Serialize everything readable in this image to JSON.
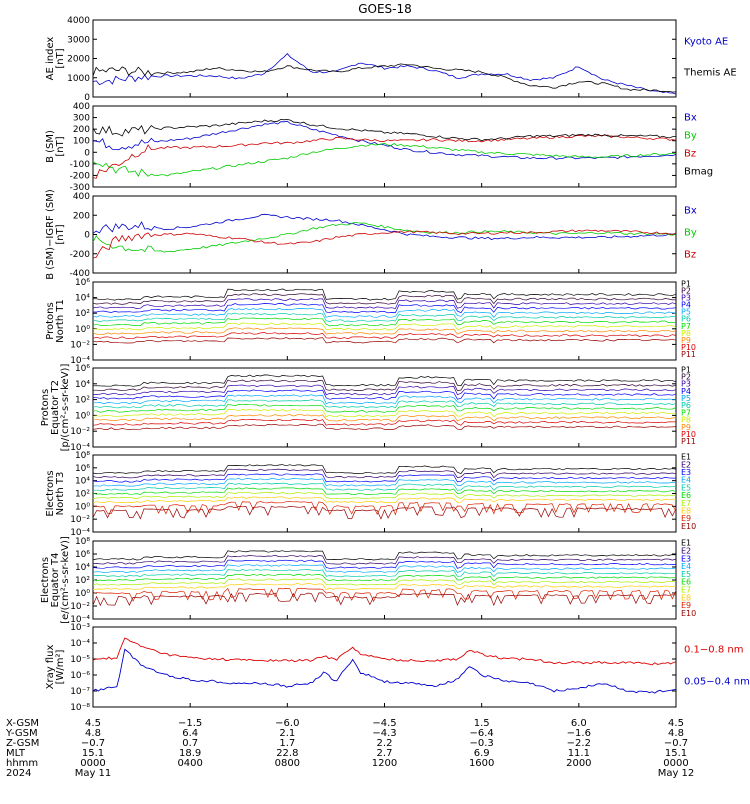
{
  "title": "GOES-18",
  "chart_data": [
    {
      "type": "line",
      "ylabel": [
        "AE index",
        "[nT]"
      ],
      "ylim": [
        0,
        4000
      ],
      "yticks": [
        "0",
        "1000",
        "2000",
        "3000",
        "4000"
      ],
      "legend": [
        {
          "name": "Kyoto AE",
          "color": "#0000cc"
        },
        {
          "name": "Themis AE",
          "color": "#000000"
        }
      ],
      "series": [
        {
          "name": "Kyoto AE",
          "color": "#0000cc",
          "x": [
            0,
            1,
            2,
            3,
            4,
            5,
            6,
            7,
            8,
            9,
            10,
            11,
            12,
            13,
            14,
            15,
            16,
            17,
            18,
            19,
            20,
            21,
            22,
            23,
            24
          ],
          "y": [
            800,
            900,
            1050,
            1100,
            1100,
            1100,
            950,
            1200,
            2200,
            1300,
            1300,
            1800,
            1500,
            1600,
            1400,
            1000,
            1200,
            1200,
            900,
            1000,
            1600,
            900,
            600,
            300,
            150
          ]
        },
        {
          "name": "Themis AE",
          "color": "#000000",
          "x": [
            0,
            1,
            2,
            3,
            4,
            5,
            6,
            7,
            8,
            9,
            10,
            11,
            12,
            13,
            14,
            15,
            16,
            17,
            18,
            19,
            20,
            21,
            22,
            23,
            24
          ],
          "y": [
            1300,
            1400,
            1300,
            1250,
            1300,
            1500,
            1400,
            1300,
            1600,
            1400,
            1300,
            1500,
            1600,
            1700,
            1500,
            1400,
            1300,
            1000,
            600,
            500,
            800,
            700,
            400,
            350,
            300
          ]
        }
      ]
    },
    {
      "type": "line",
      "ylabel": [
        "B (SM)",
        "[nT]"
      ],
      "ylim": [
        -300,
        400
      ],
      "yticks": [
        "-300",
        "-200",
        "-100",
        "0",
        "100",
        "200",
        "300",
        "400"
      ],
      "legend": [
        {
          "name": "Bx",
          "color": "#0000cc"
        },
        {
          "name": "By",
          "color": "#00cc00"
        },
        {
          "name": "Bz",
          "color": "#cc0000"
        },
        {
          "name": "Bmag",
          "color": "#000000"
        }
      ],
      "series": [
        {
          "name": "Bx",
          "color": "#0000cc",
          "x": [
            0,
            1,
            2,
            3,
            4,
            5,
            6,
            7,
            8,
            9,
            10,
            11,
            12,
            13,
            14,
            15,
            16,
            17,
            18,
            19,
            20,
            21,
            22,
            23,
            24
          ],
          "y": [
            100,
            50,
            80,
            100,
            120,
            160,
            200,
            240,
            260,
            200,
            150,
            100,
            60,
            20,
            0,
            -20,
            -30,
            -40,
            -50,
            -50,
            -50,
            -50,
            -40,
            -30,
            -20
          ]
        },
        {
          "name": "By",
          "color": "#00cc00",
          "x": [
            0,
            1,
            2,
            3,
            4,
            5,
            6,
            7,
            8,
            9,
            10,
            11,
            12,
            13,
            14,
            15,
            16,
            17,
            18,
            19,
            20,
            21,
            22,
            23,
            24
          ],
          "y": [
            -50,
            -150,
            -180,
            -200,
            -170,
            -140,
            -110,
            -80,
            -50,
            0,
            30,
            60,
            70,
            60,
            40,
            20,
            0,
            -10,
            -20,
            -30,
            -40,
            -40,
            -30,
            -20,
            -10
          ]
        },
        {
          "name": "Bz",
          "color": "#cc0000",
          "x": [
            0,
            1,
            2,
            3,
            4,
            5,
            6,
            7,
            8,
            9,
            10,
            11,
            12,
            13,
            14,
            15,
            16,
            17,
            18,
            19,
            20,
            21,
            22,
            23,
            24
          ],
          "y": [
            -200,
            -100,
            20,
            40,
            40,
            50,
            60,
            80,
            80,
            100,
            120,
            110,
            100,
            100,
            110,
            100,
            100,
            110,
            120,
            130,
            140,
            140,
            130,
            120,
            110
          ]
        },
        {
          "name": "Bmag",
          "color": "#000000",
          "x": [
            0,
            1,
            2,
            3,
            4,
            5,
            6,
            7,
            8,
            9,
            10,
            11,
            12,
            13,
            14,
            15,
            16,
            17,
            18,
            19,
            20,
            21,
            22,
            23,
            24
          ],
          "y": [
            200,
            180,
            190,
            210,
            220,
            230,
            250,
            270,
            280,
            240,
            210,
            190,
            170,
            160,
            140,
            120,
            110,
            120,
            140,
            140,
            150,
            150,
            140,
            140,
            130
          ]
        }
      ]
    },
    {
      "type": "line",
      "ylabel": [
        "B (SM)−IGRF (SM)",
        "[nT]"
      ],
      "ylim": [
        -400,
        400
      ],
      "yticks": [
        "-400",
        "-200",
        "0",
        "200",
        "400"
      ],
      "legend": [
        {
          "name": "Bx",
          "color": "#0000cc"
        },
        {
          "name": "By",
          "color": "#00cc00"
        },
        {
          "name": "Bz",
          "color": "#cc0000"
        }
      ],
      "series": [
        {
          "name": "Bx",
          "color": "#0000cc",
          "x": [
            0,
            1,
            2,
            3,
            4,
            5,
            6,
            7,
            8,
            9,
            10,
            11,
            12,
            13,
            14,
            15,
            16,
            17,
            18,
            19,
            20,
            21,
            22,
            23,
            24
          ],
          "y": [
            50,
            80,
            90,
            60,
            80,
            120,
            160,
            200,
            180,
            160,
            150,
            100,
            50,
            0,
            -20,
            -30,
            -40,
            -40,
            -30,
            -30,
            -30,
            -30,
            -20,
            -10,
            0
          ]
        },
        {
          "name": "By",
          "color": "#00cc00",
          "x": [
            0,
            1,
            2,
            3,
            4,
            5,
            6,
            7,
            8,
            9,
            10,
            11,
            12,
            13,
            14,
            15,
            16,
            17,
            18,
            19,
            20,
            21,
            22,
            23,
            24
          ],
          "y": [
            -50,
            -120,
            -160,
            -180,
            -150,
            -120,
            -80,
            -40,
            0,
            60,
            100,
            120,
            80,
            40,
            20,
            20,
            30,
            30,
            20,
            10,
            10,
            20,
            10,
            10,
            0
          ]
        },
        {
          "name": "Bz",
          "color": "#cc0000",
          "x": [
            0,
            1,
            2,
            3,
            4,
            5,
            6,
            7,
            8,
            9,
            10,
            11,
            12,
            13,
            14,
            15,
            16,
            17,
            18,
            19,
            20,
            21,
            22,
            23,
            24
          ],
          "y": [
            -250,
            -50,
            0,
            0,
            10,
            -20,
            -40,
            -80,
            -100,
            -80,
            -30,
            0,
            20,
            30,
            20,
            10,
            10,
            20,
            20,
            30,
            40,
            40,
            30,
            20,
            10
          ]
        }
      ]
    },
    {
      "type": "line",
      "ylabel": [
        "Protons",
        "North T1"
      ],
      "yscale": "log",
      "ylim": [
        0.0001,
        1000000
      ],
      "yticks": [
        "10⁻⁴",
        "10⁻²",
        "10⁰",
        "10²",
        "10⁴",
        "10⁶"
      ],
      "legend": [
        {
          "name": "P1",
          "color": "#000000"
        },
        {
          "name": "P2",
          "color": "#330033"
        },
        {
          "name": "P3",
          "color": "#3300aa"
        },
        {
          "name": "P4",
          "color": "#0000ff"
        },
        {
          "name": "P5",
          "color": "#00aaff"
        },
        {
          "name": "P6",
          "color": "#00ccaa"
        },
        {
          "name": "P7",
          "color": "#00dd00"
        },
        {
          "name": "P8",
          "color": "#ccee00"
        },
        {
          "name": "P9",
          "color": "#ff8800"
        },
        {
          "name": "P10",
          "color": "#dd0000"
        },
        {
          "name": "P11",
          "color": "#990000"
        }
      ]
    },
    {
      "type": "line",
      "ylabel": [
        "Protons",
        "Equator T2",
        "[p/(cm²-s-sr-keV)]"
      ],
      "yscale": "log",
      "ylim": [
        0.0001,
        1000000
      ],
      "yticks": [
        "10⁻⁴",
        "10⁻²",
        "10⁰",
        "10²",
        "10⁴",
        "10⁶"
      ],
      "legend": [
        {
          "name": "P1",
          "color": "#000000"
        },
        {
          "name": "P2",
          "color": "#330033"
        },
        {
          "name": "P3",
          "color": "#3300aa"
        },
        {
          "name": "P4",
          "color": "#0000ff"
        },
        {
          "name": "P5",
          "color": "#00aaff"
        },
        {
          "name": "P6",
          "color": "#00ccaa"
        },
        {
          "name": "P7",
          "color": "#00dd00"
        },
        {
          "name": "P8",
          "color": "#ccee00"
        },
        {
          "name": "P9",
          "color": "#ff8800"
        },
        {
          "name": "P10",
          "color": "#dd0000"
        },
        {
          "name": "P11",
          "color": "#990000"
        }
      ]
    },
    {
      "type": "line",
      "ylabel": [
        "Electrons",
        "North T3"
      ],
      "yscale": "log",
      "ylim": [
        0.0001,
        100000000
      ],
      "yticks": [
        "10⁻⁴",
        "10⁻²",
        "10⁰",
        "10²",
        "10⁴",
        "10⁶",
        "10⁸"
      ],
      "legend": [
        {
          "name": "E1",
          "color": "#000000"
        },
        {
          "name": "E2",
          "color": "#330066"
        },
        {
          "name": "E3",
          "color": "#0000ff"
        },
        {
          "name": "E4",
          "color": "#00aaff"
        },
        {
          "name": "E5",
          "color": "#00ccaa"
        },
        {
          "name": "E6",
          "color": "#00dd00"
        },
        {
          "name": "E7",
          "color": "#aaee00"
        },
        {
          "name": "E8",
          "color": "#ffcc00"
        },
        {
          "name": "E9",
          "color": "#dd2200"
        },
        {
          "name": "E10",
          "color": "#990000"
        }
      ]
    },
    {
      "type": "line",
      "ylabel": [
        "Electrons",
        "Equator T4",
        "[e/(cm²-s-sr-keV)]"
      ],
      "yscale": "log",
      "ylim": [
        0.0001,
        100000000
      ],
      "yticks": [
        "10⁻⁴",
        "10⁻²",
        "10⁰",
        "10²",
        "10⁴",
        "10⁶",
        "10⁸"
      ],
      "legend": [
        {
          "name": "E1",
          "color": "#000000"
        },
        {
          "name": "E2",
          "color": "#330066"
        },
        {
          "name": "E3",
          "color": "#0000ff"
        },
        {
          "name": "E4",
          "color": "#00aaff"
        },
        {
          "name": "E5",
          "color": "#00ccaa"
        },
        {
          "name": "E6",
          "color": "#00dd00"
        },
        {
          "name": "E7",
          "color": "#aaee00"
        },
        {
          "name": "E8",
          "color": "#ffcc00"
        },
        {
          "name": "E9",
          "color": "#dd2200"
        },
        {
          "name": "E10",
          "color": "#990000"
        }
      ]
    },
    {
      "type": "line",
      "ylabel": [
        "Xray flux",
        "[W/m²]"
      ],
      "yscale": "log",
      "ylim": [
        1e-08,
        0.001
      ],
      "yticks": [
        "10⁻⁸",
        "10⁻⁷",
        "10⁻⁶",
        "10⁻⁵",
        "10⁻⁴",
        "10⁻³"
      ],
      "legend": [
        {
          "name": "0.1−0.8 nm",
          "color": "#dd0000"
        },
        {
          "name": "0.05−0.4 nm",
          "color": "#0000cc"
        }
      ],
      "series": [
        {
          "name": "0.1−0.8 nm",
          "color": "#dd0000",
          "x": [
            0,
            1,
            1.3,
            2,
            3,
            4,
            5,
            6,
            7,
            8,
            9,
            9.5,
            10,
            10.7,
            11,
            12,
            13,
            14,
            15,
            15.5,
            16,
            17,
            18,
            19,
            20,
            21,
            22,
            23,
            24
          ],
          "y": [
            1e-05,
            1.2e-05,
            0.0002,
            6e-05,
            2e-05,
            1.2e-05,
            1e-05,
            9e-06,
            8e-06,
            8e-06,
            8e-06,
            1.5e-05,
            9e-06,
            6e-05,
            2e-05,
            1e-05,
            8e-06,
            8e-06,
            1e-05,
            3.5e-05,
            2e-05,
            1e-05,
            1e-05,
            6e-06,
            6e-06,
            6e-06,
            6e-06,
            5e-06,
            6e-06
          ]
        },
        {
          "name": "0.05−0.4 nm",
          "color": "#0000cc",
          "x": [
            0,
            1,
            1.3,
            2,
            3,
            4,
            5,
            6,
            7,
            8,
            9,
            9.5,
            10,
            10.7,
            11,
            12,
            13,
            14,
            15,
            15.5,
            16,
            17,
            18,
            19,
            20,
            21,
            22,
            23,
            24
          ],
          "y": [
            1e-07,
            2e-07,
            4e-05,
            4e-06,
            1e-06,
            5e-07,
            4e-07,
            3e-07,
            3e-07,
            2e-07,
            3e-07,
            1.5e-06,
            4e-07,
            1e-05,
            1.5e-06,
            4e-07,
            3e-07,
            2e-07,
            5e-07,
            4e-06,
            1e-06,
            4e-07,
            3e-07,
            1e-07,
            1.5e-07,
            3e-07,
            1e-07,
            8e-08,
            1.5e-07
          ]
        }
      ]
    }
  ],
  "xaxis": {
    "ticks": [
      "0000",
      "0400",
      "0800",
      "1200",
      "1600",
      "2000",
      "0000"
    ],
    "rows": [
      {
        "label": "X-GSM",
        "values": [
          "4.5",
          "−1.5",
          "−6.0",
          "−4.5",
          "1.5",
          "6.0",
          "4.5"
        ]
      },
      {
        "label": "Y-GSM",
        "values": [
          "4.8",
          "6.4",
          "2.1",
          "−4.3",
          "−6.4",
          "−1.6",
          "4.8"
        ]
      },
      {
        "label": "Z-GSM",
        "values": [
          "−0.7",
          "0.7",
          "1.7",
          "2.2",
          "−0.3",
          "−2.2",
          "−0.7"
        ]
      },
      {
        "label": "MLT",
        "values": [
          "15.1",
          "18.9",
          "22.8",
          "2.7",
          "6.9",
          "11.1",
          "15.1"
        ]
      },
      {
        "label": "hhmm",
        "values": [
          "0000",
          "0400",
          "0800",
          "1200",
          "1600",
          "2000",
          "0000"
        ]
      },
      {
        "label": "2024",
        "values": [
          "May 11",
          "",
          "",
          "",
          "",
          "",
          "May 12"
        ]
      }
    ]
  },
  "colors": {
    "axis": "#000000",
    "background": "#ffffff"
  }
}
